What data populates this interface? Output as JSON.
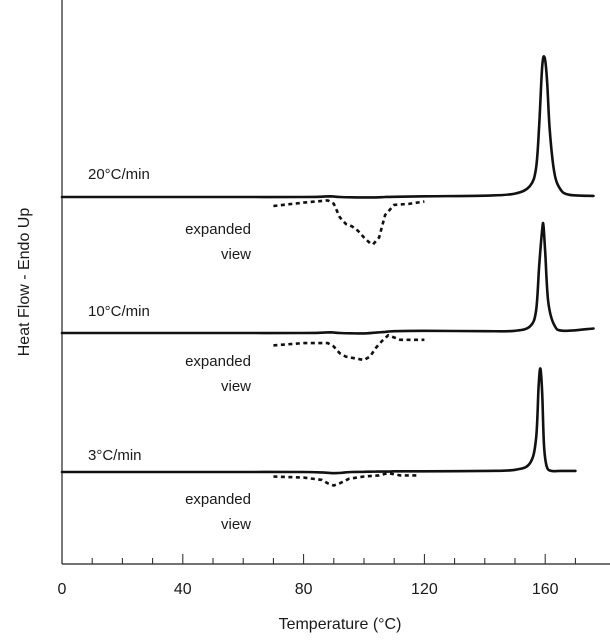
{
  "chart_data": {
    "type": "line",
    "xlabel": "Temperature (°C)",
    "ylabel": "Heat Flow - Endo Up",
    "xlim": [
      0,
      176
    ],
    "x_ticks": [
      0,
      40,
      80,
      120,
      160
    ],
    "x_minor_step": 10,
    "grid": false,
    "series": [
      {
        "name": "20°C/min",
        "style": "solid",
        "x": [
          0,
          20,
          40,
          60,
          80,
          86,
          89,
          92,
          96,
          100,
          104,
          107,
          110,
          120,
          140,
          150,
          155,
          157,
          158,
          159,
          159.8,
          160.6,
          161.5,
          163,
          165,
          168,
          176
        ],
        "y": [
          0,
          0,
          0,
          0,
          0,
          0.015,
          0.03,
          0,
          -0.015,
          -0.02,
          -0.02,
          0,
          0.01,
          0.03,
          0.06,
          0.15,
          0.5,
          1.3,
          3.2,
          5.8,
          6.2,
          5.2,
          3.0,
          1.1,
          0.35,
          0.1,
          0.05
        ]
      },
      {
        "name": "expanded view",
        "style": "dashed",
        "x": [
          70,
          80,
          88,
          90,
          92,
          94,
          96,
          98,
          100,
          102,
          103,
          105,
          107,
          110,
          115,
          120
        ],
        "y": [
          -0.4,
          -0.25,
          -0.15,
          -0.3,
          -0.9,
          -1.2,
          -1.3,
          -1.5,
          -1.8,
          -2.05,
          -2.1,
          -1.8,
          -0.8,
          -0.35,
          -0.3,
          -0.2
        ]
      },
      {
        "name": "10°C/min",
        "style": "solid",
        "x": [
          0,
          20,
          40,
          60,
          80,
          86,
          89,
          92,
          96,
          100,
          104,
          107,
          110,
          120,
          140,
          150,
          155,
          157,
          158,
          159,
          159.4,
          160,
          161,
          163,
          166,
          176
        ],
        "y": [
          0,
          0,
          0,
          0,
          0,
          0.015,
          0.03,
          0,
          -0.015,
          -0.02,
          0.02,
          0.05,
          0.08,
          0.1,
          0.08,
          0.1,
          0.3,
          1.0,
          3.0,
          4.6,
          4.8,
          3.6,
          1.4,
          0.35,
          0.1,
          0.2
        ]
      },
      {
        "name": "expanded view",
        "style": "dashed",
        "x": [
          70,
          80,
          88,
          90,
          92,
          94,
          96,
          98,
          100,
          102,
          104,
          106,
          108,
          110,
          112,
          120
        ],
        "y": [
          -0.55,
          -0.45,
          -0.45,
          -0.6,
          -0.9,
          -1.05,
          -1.1,
          -1.15,
          -1.2,
          -1.05,
          -0.65,
          -0.35,
          -0.1,
          -0.2,
          -0.3,
          -0.3
        ]
      },
      {
        "name": "3°C/min",
        "style": "solid",
        "x": [
          0,
          20,
          40,
          60,
          80,
          86,
          89,
          91,
          93,
          96,
          100,
          104,
          108,
          110,
          120,
          140,
          150,
          155,
          157,
          157.8,
          158.4,
          159,
          159.6,
          160.5,
          162,
          165,
          170
        ],
        "y": [
          0,
          0,
          0,
          0,
          0,
          -0.02,
          -0.05,
          -0.05,
          -0.03,
          0,
          0.01,
          0.02,
          0.02,
          0.03,
          0.03,
          0.05,
          0.1,
          0.4,
          1.5,
          3.8,
          4.6,
          3.5,
          1.2,
          0.25,
          0.05,
          0.05,
          0.05
        ]
      },
      {
        "name": "expanded view",
        "style": "dashed",
        "x": [
          70,
          80,
          86,
          88,
          90,
          92,
          95,
          100,
          105,
          108,
          110,
          112,
          118
        ],
        "y": [
          -0.2,
          -0.25,
          -0.35,
          -0.5,
          -0.6,
          -0.5,
          -0.3,
          -0.2,
          -0.15,
          -0.05,
          -0.1,
          -0.15,
          -0.15
        ]
      }
    ]
  }
}
